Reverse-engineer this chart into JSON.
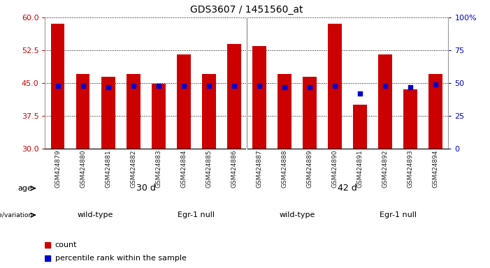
{
  "title": "GDS3607 / 1451560_at",
  "samples": [
    "GSM424879",
    "GSM424880",
    "GSM424881",
    "GSM424882",
    "GSM424883",
    "GSM424884",
    "GSM424885",
    "GSM424886",
    "GSM424887",
    "GSM424888",
    "GSM424889",
    "GSM424890",
    "GSM424891",
    "GSM424892",
    "GSM424893",
    "GSM424894"
  ],
  "counts": [
    58.5,
    47.0,
    46.5,
    47.0,
    44.8,
    51.5,
    47.0,
    54.0,
    53.5,
    47.0,
    46.5,
    58.5,
    40.0,
    51.5,
    43.5,
    47.0
  ],
  "percentile": [
    48,
    48,
    47,
    48,
    48,
    48,
    48,
    48,
    48,
    47,
    47,
    48,
    42,
    48,
    47,
    49
  ],
  "y_min": 30,
  "y_max": 60,
  "y_ticks": [
    30,
    37.5,
    45,
    52.5,
    60
  ],
  "y_right_ticks": [
    0,
    25,
    50,
    75,
    100
  ],
  "bar_color": "#cc0000",
  "dot_color": "#0000cc",
  "age_groups": [
    {
      "label": "30 d",
      "start": 0,
      "end": 7,
      "color": "#aaddaa"
    },
    {
      "label": "42 d",
      "start": 8,
      "end": 15,
      "color": "#44cc44"
    }
  ],
  "geno_groups": [
    {
      "label": "wild-type",
      "start": 0,
      "end": 3,
      "color": "#dd88dd"
    },
    {
      "label": "Egr-1 null",
      "start": 4,
      "end": 7,
      "color": "#cc44cc"
    },
    {
      "label": "wild-type",
      "start": 8,
      "end": 11,
      "color": "#dd88dd"
    },
    {
      "label": "Egr-1 null",
      "start": 12,
      "end": 15,
      "color": "#cc44cc"
    }
  ],
  "tick_label_color": "#cc0000",
  "right_axis_color": "#0000cc",
  "grid_color": "#000000"
}
